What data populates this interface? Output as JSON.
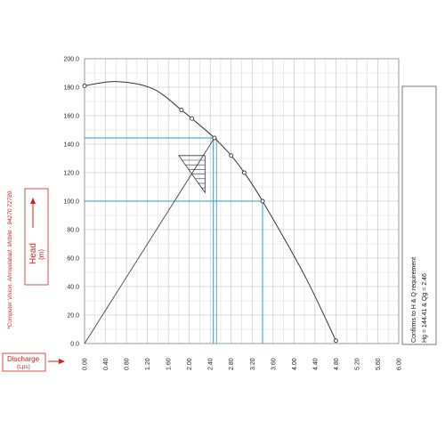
{
  "chart_data": {
    "type": "line",
    "title": "",
    "xlabel": "Discharge",
    "xlabel_unit": "(Lps)",
    "ylabel": "Head",
    "ylabel_unit": "(m)",
    "xlim": [
      0,
      6.0
    ],
    "ylim": [
      0,
      200
    ],
    "x_ticks": [
      "0.00",
      "0.40",
      "0.80",
      "1.20",
      "1.60",
      "2.00",
      "2.40",
      "2.80",
      "3.20",
      "3.60",
      "4.00",
      "4.40",
      "4.80",
      "5.20",
      "5.60",
      "6.00"
    ],
    "y_ticks": [
      "0.0",
      "20.0",
      "40.0",
      "60.0",
      "80.0",
      "100.0",
      "120.0",
      "140.0",
      "160.0",
      "180.0",
      "200.0"
    ],
    "grid": true,
    "series": [
      {
        "values_x": [
          0.0,
          0.6,
          1.3,
          1.85,
          2.05,
          2.48,
          2.8,
          3.05,
          3.4,
          4.2,
          4.8
        ],
        "values_y": [
          181,
          184,
          179,
          164,
          158,
          144.4,
          132,
          120,
          100,
          48,
          2
        ],
        "markers_x": [
          0.0,
          1.85,
          2.05,
          2.48,
          2.8,
          3.05,
          3.4,
          4.8
        ],
        "markers_y": [
          181,
          164,
          158,
          144.4,
          132,
          120,
          100,
          2
        ],
        "color": "#333333"
      }
    ],
    "system_line": {
      "x": [
        0.0,
        2.48
      ],
      "y": [
        0,
        144.4
      ]
    },
    "guides": [
      {
        "x": 2.46,
        "y": 144.41,
        "color": "#2a9ac8"
      },
      {
        "x": 3.4,
        "y": 100,
        "color": "#2a9ac8"
      }
    ],
    "guide_extra_x": 2.52,
    "hatch_triangle": {
      "x": [
        1.8,
        2.3,
        2.3
      ],
      "y": [
        132,
        132,
        106
      ]
    },
    "axis_label_color": "#d02020"
  },
  "remark_lines": [
    "Confirms to H & Q requirement",
    "Hg = 144.41 & Qg = 2.46"
  ],
  "side_note": "*Computer Vision, Ahmedabad. Mobile - 94270 72789."
}
